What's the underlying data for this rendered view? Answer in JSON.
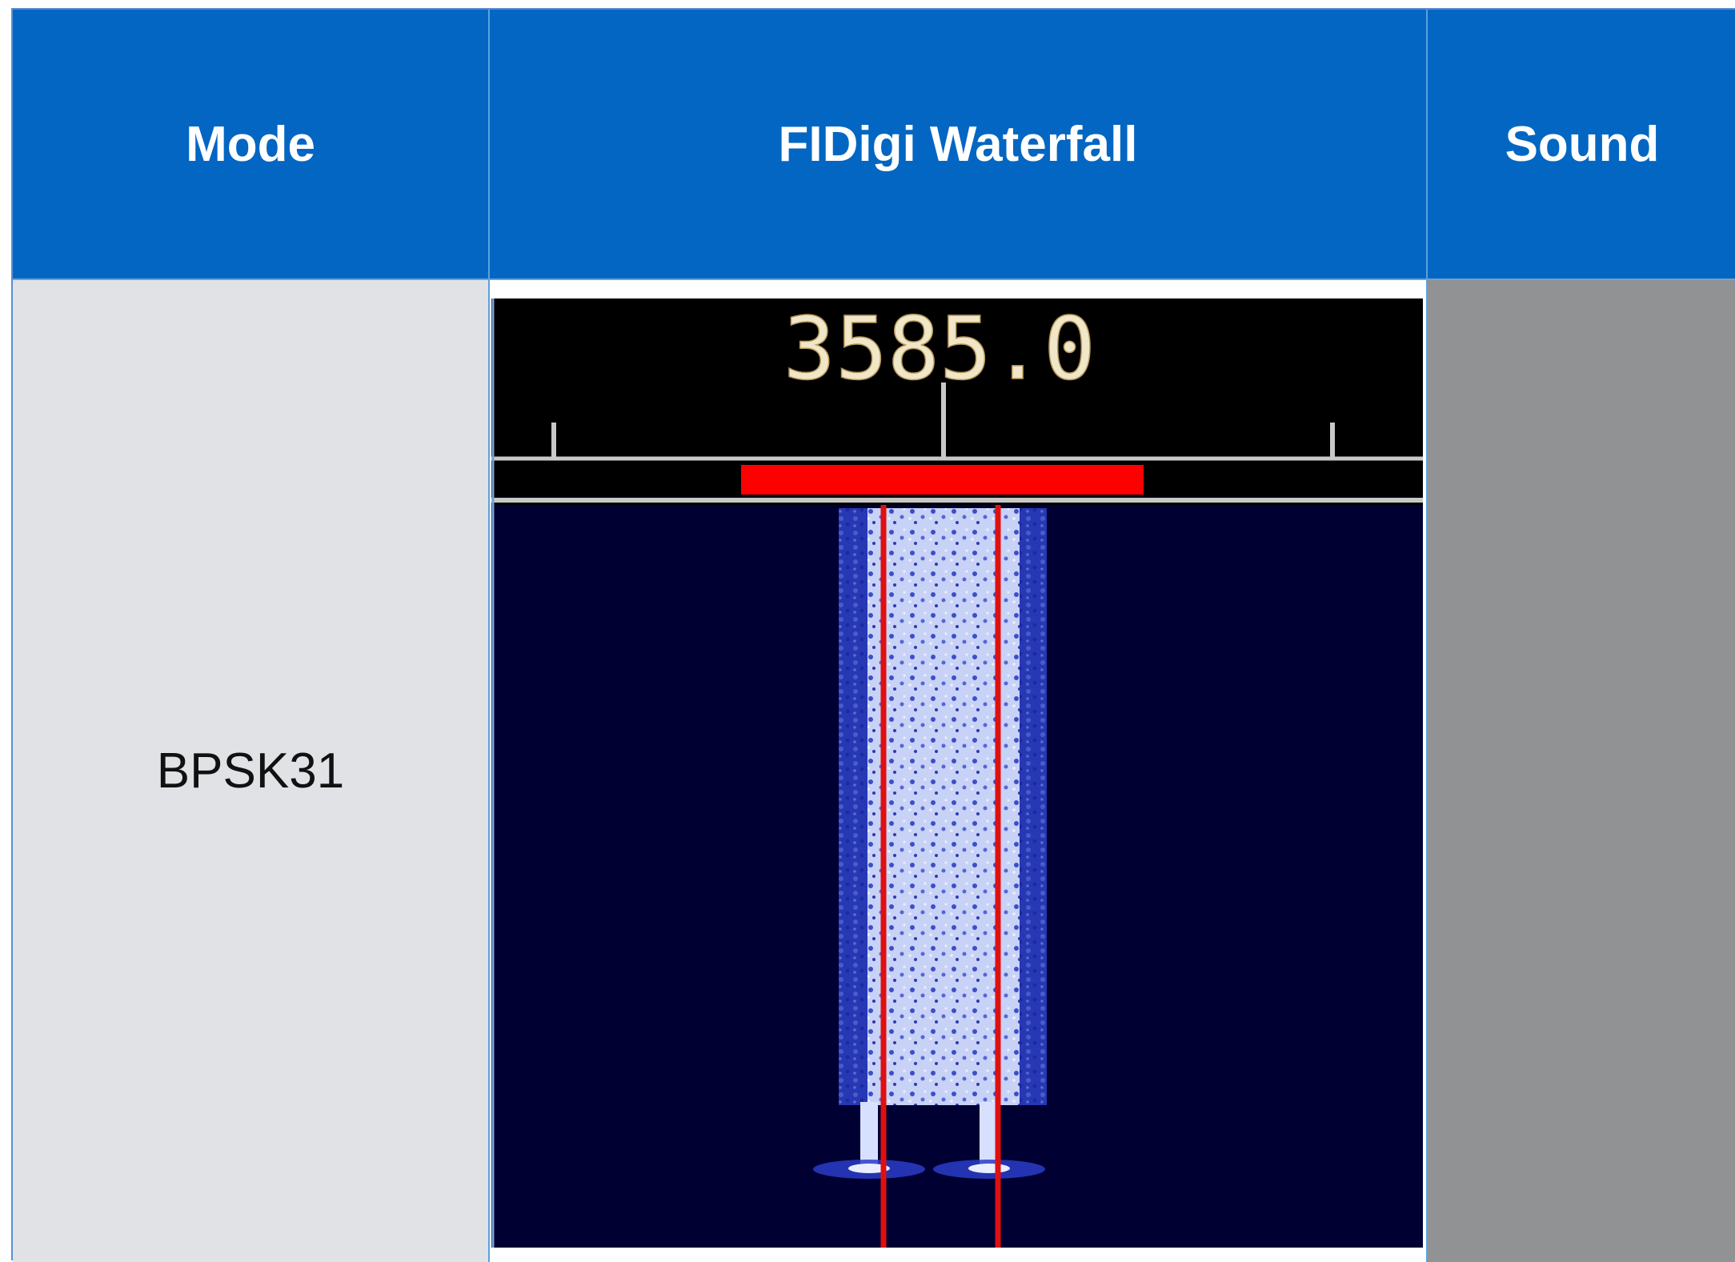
{
  "table": {
    "headers": {
      "mode": "Mode",
      "waterfall": "FIDigi Waterfall",
      "sound": "Sound"
    },
    "rows": [
      {
        "mode": "BPSK31",
        "waterfall": {
          "frequency_readout": "3585.0"
        },
        "sound": ""
      }
    ]
  },
  "colors": {
    "header_bg": "#0366c3",
    "header_text": "#ffffff",
    "mode_cell_bg": "#e1e2e6",
    "sound_cell_bg": "#919293",
    "waterfall_bg": "#000033",
    "signal_band": "#ff0000",
    "cursor_lines": "#e01010",
    "signal_trace": "#6f86e8",
    "frequency_text": "#f0e6c8"
  }
}
